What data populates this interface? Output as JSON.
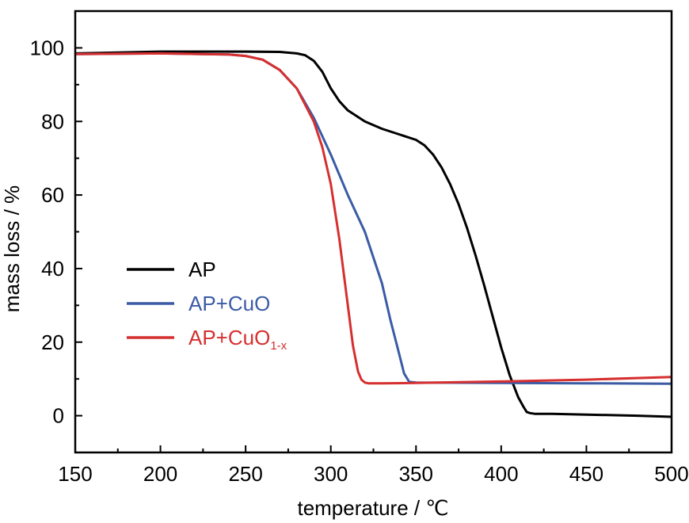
{
  "chart_data": {
    "type": "line",
    "title": "",
    "xlabel": "temperature / ℃",
    "ylabel": "mass loss / %",
    "xlim": [
      150,
      500
    ],
    "ylim": [
      -10,
      110
    ],
    "xticks": [
      150,
      200,
      250,
      300,
      350,
      400,
      450,
      500
    ],
    "yticks": [
      0,
      20,
      40,
      60,
      80,
      100
    ],
    "grid": false,
    "legend_position": "left",
    "series": [
      {
        "name": "AP",
        "color": "#000000",
        "x": [
          150,
          200,
          250,
          270,
          280,
          285,
          290,
          295,
          300,
          305,
          310,
          320,
          330,
          340,
          350,
          355,
          360,
          365,
          370,
          375,
          380,
          385,
          390,
          395,
          400,
          405,
          410,
          413,
          415,
          417,
          420,
          430,
          450,
          480,
          500
        ],
        "y": [
          98.5,
          99,
          99,
          98.9,
          98.5,
          98,
          96.5,
          93.5,
          89,
          85.5,
          83,
          80,
          78,
          76.5,
          75,
          73.5,
          71,
          67.5,
          63,
          57.5,
          51,
          43.5,
          35.5,
          27,
          18.5,
          11,
          5,
          2.5,
          1,
          0.7,
          0.5,
          0.5,
          0.3,
          0,
          -0.3
        ]
      },
      {
        "name": "AP+CuO",
        "color": "#3b5ba5",
        "x": [
          150,
          200,
          240,
          250,
          260,
          270,
          280,
          290,
          300,
          310,
          320,
          330,
          335,
          340,
          343,
          346,
          350,
          400,
          450,
          500
        ],
        "y": [
          98.3,
          98.5,
          98.2,
          97.8,
          96.8,
          94,
          89,
          81,
          71,
          60,
          50,
          36,
          26,
          17,
          11.5,
          9.2,
          9,
          8.9,
          8.8,
          8.7
        ]
      },
      {
        "name": "AP+CuO",
        "name_subscript": "1-x",
        "color": "#d62f2f",
        "x": [
          150,
          200,
          240,
          250,
          260,
          270,
          280,
          290,
          295,
          300,
          305,
          310,
          313,
          316,
          318,
          320,
          322,
          330,
          350,
          400,
          450,
          500
        ],
        "y": [
          98.3,
          98.5,
          98.2,
          97.8,
          96.8,
          94,
          89,
          80,
          73,
          63,
          48,
          30,
          19,
          12,
          9.8,
          9,
          8.8,
          8.8,
          8.9,
          9.3,
          9.8,
          10.5
        ]
      }
    ]
  }
}
